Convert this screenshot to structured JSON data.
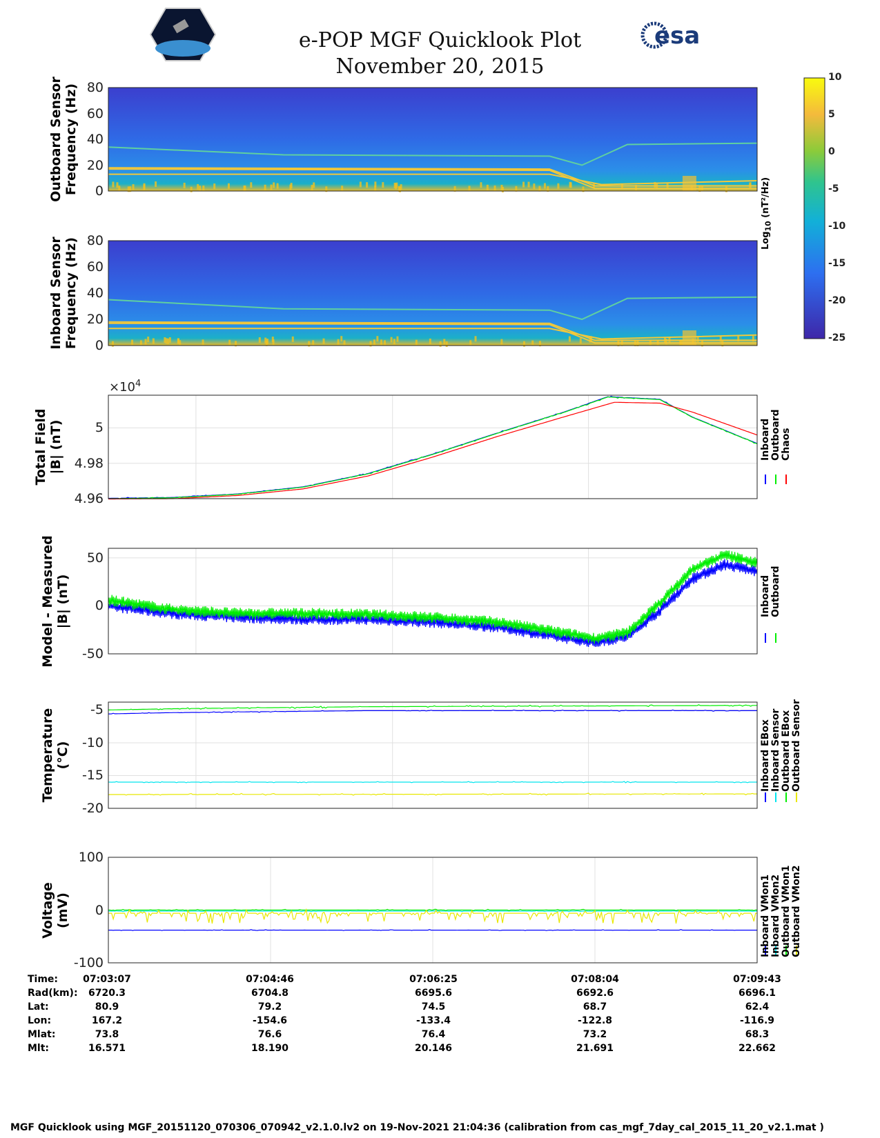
{
  "header": {
    "title": "e-POP MGF Quicklook Plot",
    "date": "November 20, 2015",
    "left_logo": "CASSIOPE",
    "right_logo": "esa"
  },
  "colors": {
    "inboard": "#0000ff",
    "outboard": "#00ee00",
    "chaos": "#ff0000",
    "cyan": "#00e5ee",
    "yellow": "#ffff00"
  },
  "chart_data": [
    {
      "type": "heatmap",
      "id": "outboard",
      "ylabel": "Outboard Sensor\nFrequency (Hz)",
      "ylabel1": "Outboard Sensor",
      "ylabel2": "Frequency (Hz)",
      "ylim": [
        0,
        80
      ],
      "yticks": [
        "80",
        "60",
        "40",
        "20",
        "0"
      ],
      "lines": [
        [
          0,
          34,
          0.27,
          28,
          0.68,
          27,
          0.73,
          20,
          0.8,
          36,
          1,
          37
        ],
        [
          0,
          18,
          0.68,
          17,
          0.75,
          4,
          1,
          4
        ],
        [
          0,
          17,
          0.68,
          16,
          0.75,
          2,
          1,
          2
        ],
        [
          0,
          13,
          0.68,
          13,
          0.76,
          5,
          1,
          8
        ]
      ]
    },
    {
      "type": "heatmap",
      "id": "inboard",
      "ylabel1": "Inboard Sensor",
      "ylabel2": "Frequency (Hz)",
      "ylim": [
        0,
        80
      ],
      "yticks": [
        "80",
        "60",
        "40",
        "20",
        "0"
      ],
      "lines": [
        [
          0,
          35,
          0.27,
          28,
          0.68,
          27,
          0.73,
          20,
          0.8,
          36,
          1,
          37
        ],
        [
          0,
          18,
          0.68,
          17,
          0.75,
          4,
          1,
          4
        ],
        [
          0,
          17,
          0.68,
          16,
          0.75,
          2,
          1,
          2
        ],
        [
          0,
          13,
          0.68,
          13,
          0.76,
          5,
          1,
          8
        ]
      ]
    },
    {
      "type": "colorbar",
      "label": "Log10 (nT²/Hz)",
      "label_main": "Log",
      "label_sub": "10",
      "label_rest": " (nT²/Hz)",
      "range": [
        -25,
        10
      ],
      "ticks": [
        "10",
        "5",
        "0",
        "-5",
        "-10",
        "-15",
        "-20",
        "-25"
      ]
    },
    {
      "type": "line",
      "id": "total",
      "ylabel1": "Total Field",
      "ylabel2": "|B| (nT)",
      "multiplier": "×10",
      "multiplier_exp": "4",
      "ylim": [
        4.96,
        5.0185
      ],
      "yticks": [
        {
          "v": 5,
          "t": "5"
        },
        {
          "v": 4.98,
          "t": "4.98"
        },
        {
          "v": 4.96,
          "t": "4.96"
        }
      ],
      "legend": [
        "Inboard",
        "Outboard",
        "Chaos"
      ],
      "series": [
        {
          "name": "Inboard",
          "color": "#0000ff",
          "noise": 0.0004,
          "x": [
            0,
            0.1,
            0.2,
            0.3,
            0.4,
            0.5,
            0.6,
            0.7,
            0.77,
            0.85,
            0.9,
            1
          ],
          "y": [
            4.9602,
            4.9607,
            4.9627,
            4.9667,
            4.9742,
            4.9852,
            4.9972,
            5.0087,
            5.0177,
            5.0162,
            5.0062,
            4.9912
          ]
        },
        {
          "name": "Outboard",
          "color": "#00ee00",
          "noise": 0.0004,
          "x": [
            0,
            0.1,
            0.2,
            0.3,
            0.4,
            0.5,
            0.6,
            0.7,
            0.77,
            0.85,
            0.9,
            1
          ],
          "y": [
            4.96,
            4.9605,
            4.9625,
            4.9665,
            4.974,
            4.985,
            4.997,
            5.0085,
            5.0175,
            5.016,
            5.006,
            4.991
          ]
        },
        {
          "name": "Chaos",
          "color": "#ff0000",
          "noise": 0,
          "x": [
            0,
            0.1,
            0.2,
            0.3,
            0.4,
            0.5,
            0.6,
            0.7,
            0.78,
            0.85,
            0.9,
            1
          ],
          "y": [
            4.9598,
            4.96,
            4.9618,
            4.9655,
            4.9728,
            4.9835,
            4.9952,
            5.006,
            5.0145,
            5.014,
            5.009,
            4.996
          ]
        }
      ]
    },
    {
      "type": "line",
      "id": "diff",
      "ylabel1": "Model - Measured",
      "ylabel2": "|B| (nT)",
      "ylim": [
        -50,
        60
      ],
      "yticks": [
        {
          "v": 50,
          "t": "50"
        },
        {
          "v": 0,
          "t": "0"
        },
        {
          "v": -50,
          "t": "-50"
        }
      ],
      "legend": [
        "Inboard",
        "Outboard"
      ],
      "series": [
        {
          "name": "Inboard",
          "color": "#0000ff",
          "noise": 4,
          "x": [
            0,
            0.1,
            0.2,
            0.3,
            0.4,
            0.5,
            0.6,
            0.7,
            0.75,
            0.8,
            0.85,
            0.9,
            0.95,
            1
          ],
          "y": [
            0,
            -8,
            -12,
            -14,
            -14,
            -17,
            -22,
            -33,
            -38,
            -32,
            -5,
            28,
            43,
            36
          ]
        },
        {
          "name": "Outboard",
          "color": "#00ee00",
          "noise": 4,
          "x": [
            0,
            0.1,
            0.2,
            0.3,
            0.4,
            0.5,
            0.6,
            0.7,
            0.75,
            0.8,
            0.85,
            0.9,
            0.95,
            1
          ],
          "y": [
            6,
            -4,
            -8,
            -8,
            -9,
            -12,
            -17,
            -28,
            -34,
            -28,
            3,
            38,
            53,
            45
          ]
        }
      ]
    },
    {
      "type": "line",
      "id": "temp",
      "ylabel1": "Temperature",
      "ylabel2": "(°C)",
      "ylim": [
        -20,
        -3.8
      ],
      "yticks": [
        {
          "v": -5,
          "t": "-5"
        },
        {
          "v": -10,
          "t": "-10"
        },
        {
          "v": -15,
          "t": "-15"
        },
        {
          "v": -20,
          "t": "-20"
        }
      ],
      "legend": [
        "Inboard EBox",
        "Inboard Sensor",
        "Outboard EBox",
        "Outboard Sensor"
      ],
      "series": [
        {
          "name": "Inboard EBox",
          "color": "#0000ff",
          "noise": 0.1,
          "x": [
            0,
            0.1,
            0.4,
            1
          ],
          "y": [
            -5.6,
            -5.4,
            -5.1,
            -5.1
          ]
        },
        {
          "name": "Inboard Sensor",
          "color": "#00e5ee",
          "noise": 0.1,
          "x": [
            0,
            1
          ],
          "y": [
            -16,
            -16
          ]
        },
        {
          "name": "Outboard EBox",
          "color": "#00ee00",
          "noise": 0.15,
          "x": [
            0,
            0.1,
            0.4,
            1
          ],
          "y": [
            -5,
            -4.8,
            -4.5,
            -4.3
          ]
        },
        {
          "name": "Outboard Sensor",
          "color": "#e8e800",
          "noise": 0.15,
          "x": [
            0,
            1
          ],
          "y": [
            -17.9,
            -17.8
          ]
        }
      ]
    },
    {
      "type": "line",
      "id": "volt",
      "ylabel1": "Voltage",
      "ylabel2": "(mV)",
      "ylim": [
        -100,
        100
      ],
      "yticks": [
        {
          "v": 100,
          "t": "100"
        },
        {
          "v": 0,
          "t": "0"
        },
        {
          "v": -100,
          "t": "-100"
        }
      ],
      "legend": [
        "Inboard VMon1",
        "Inboard VMon2",
        "Outboard VMon1",
        "Outboard VMon2"
      ],
      "series": [
        {
          "name": "Inboard VMon1",
          "color": "#0000ff",
          "noise": 1,
          "x": [
            0,
            1
          ],
          "y": [
            -38,
            -38
          ]
        },
        {
          "name": "Inboard VMon2",
          "color": "#00e5ee",
          "noise": 1,
          "x": [
            0,
            1
          ],
          "y": [
            -2,
            -2
          ]
        },
        {
          "name": "Outboard VMon1",
          "color": "#00ee00",
          "noise": 1.5,
          "x": [
            0,
            1
          ],
          "y": [
            0,
            0
          ]
        },
        {
          "name": "Outboard VMon2",
          "color": "#e8e800",
          "noise": 7,
          "x": [
            0,
            1
          ],
          "y": [
            -6,
            -6
          ]
        }
      ]
    }
  ],
  "info": {
    "labels": [
      "Time:",
      "Rad(km):",
      "Lat:",
      "Lon:",
      "Mlat:",
      "Mlt:"
    ],
    "columns": [
      [
        "07:03:07",
        "6720.3",
        "80.9",
        "167.2",
        "73.8",
        "16.571"
      ],
      [
        "07:04:46",
        "6704.8",
        "79.2",
        "-154.6",
        "76.6",
        "18.190"
      ],
      [
        "07:06:25",
        "6695.6",
        "74.5",
        "-133.4",
        "76.4",
        "20.146"
      ],
      [
        "07:08:04",
        "6692.6",
        "68.7",
        "-122.8",
        "73.2",
        "21.691"
      ],
      [
        "07:09:43",
        "6696.1",
        "62.4",
        "-116.9",
        "68.3",
        "22.662"
      ]
    ]
  },
  "footer": "MGF Quicklook using MGF_20151120_070306_070942_v2.1.0.lv2 on 19-Nov-2021 21:04:36 (calibration from cas_mgf_7day_cal_2015_11_20_v2.1.mat )"
}
